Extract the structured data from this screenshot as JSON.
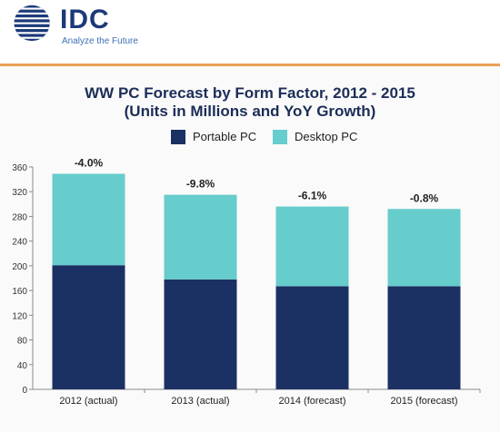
{
  "header": {
    "logo_text": "IDC",
    "tagline": "Analyze the Future"
  },
  "colors": {
    "portable": "#1c3163",
    "desktop": "#66cccc",
    "accent_rule": "#e9a057"
  },
  "chart_data": {
    "type": "bar",
    "stacked": true,
    "title": "WW PC Forecast by Form Factor, 2012 - 2015",
    "subtitle": "(Units in Millions and YoY Growth)",
    "categories": [
      "2012 (actual)",
      "2013 (actual)",
      "2014 (forecast)",
      "2015 (forecast)"
    ],
    "series": [
      {
        "name": "Portable PC",
        "values": [
          201,
          178,
          167,
          167
        ]
      },
      {
        "name": "Desktop PC",
        "values": [
          148,
          137,
          129,
          125
        ]
      }
    ],
    "growth_labels": [
      "-4.0%",
      "-9.8%",
      "-6.1%",
      "-0.8%"
    ],
    "ylim": [
      0,
      360
    ],
    "yticks": [
      0,
      40,
      80,
      120,
      160,
      200,
      240,
      280,
      320,
      360
    ],
    "grid": false,
    "legend_position": "top-center"
  }
}
